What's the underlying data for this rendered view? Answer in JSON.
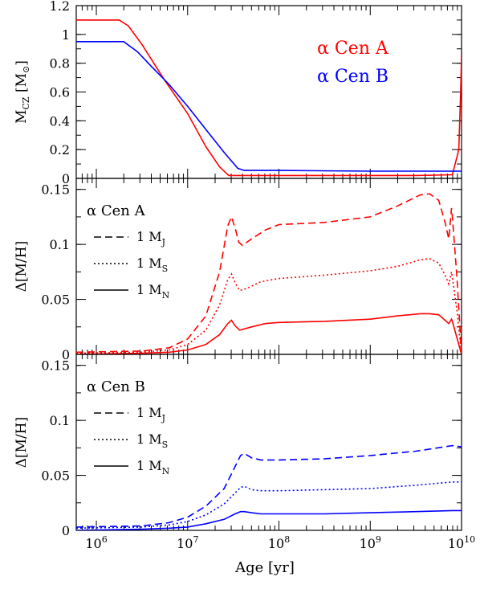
{
  "chart_data": [
    {
      "type": "line",
      "ylabel_main": "M",
      "ylabel_sub": "CZ",
      "ylabel_unit_open": " [M",
      "ylabel_unit_close": "]",
      "ylim": [
        0,
        1.2
      ],
      "yticks": [
        "0",
        "0.2",
        "0.4",
        "0.6",
        "0.8",
        "1",
        "1.2"
      ],
      "legend": [
        {
          "label": "α Cen A",
          "color": "#ff0000"
        },
        {
          "label": "α Cen B",
          "color": "#0000ff"
        }
      ],
      "series": [
        {
          "name": "α Cen A",
          "color": "#ff0000",
          "points": [
            [
              5.78,
              1.1
            ],
            [
              6.0,
              1.1
            ],
            [
              6.25,
              1.1
            ],
            [
              6.35,
              1.06
            ],
            [
              6.5,
              0.93
            ],
            [
              6.75,
              0.68
            ],
            [
              7.0,
              0.45
            ],
            [
              7.2,
              0.22
            ],
            [
              7.35,
              0.08
            ],
            [
              7.45,
              0.02
            ],
            [
              7.5,
              0.02
            ],
            [
              8.0,
              0.02
            ],
            [
              9.0,
              0.02
            ],
            [
              9.5,
              0.02
            ],
            [
              9.9,
              0.025
            ],
            [
              9.97,
              0.2
            ],
            [
              9.99,
              0.6
            ],
            [
              10.0,
              0.86
            ]
          ]
        },
        {
          "name": "α Cen B",
          "color": "#0000ff",
          "points": [
            [
              5.78,
              0.95
            ],
            [
              6.0,
              0.95
            ],
            [
              6.3,
              0.95
            ],
            [
              6.45,
              0.88
            ],
            [
              6.6,
              0.78
            ],
            [
              6.8,
              0.65
            ],
            [
              7.0,
              0.5
            ],
            [
              7.2,
              0.34
            ],
            [
              7.4,
              0.18
            ],
            [
              7.55,
              0.07
            ],
            [
              7.62,
              0.055
            ],
            [
              8.0,
              0.055
            ],
            [
              9.0,
              0.05
            ],
            [
              9.9,
              0.05
            ],
            [
              10.0,
              0.05
            ]
          ]
        }
      ]
    },
    {
      "type": "line",
      "ylabel": "Δ[M/H]",
      "ylim": [
        0,
        0.16
      ],
      "yticks": [
        "0",
        "0.05",
        "0.1",
        "0.15"
      ],
      "annotation": "α Cen A",
      "legend": [
        {
          "label": "1 M",
          "sub": "J",
          "dash": "dashed"
        },
        {
          "label": "1 M",
          "sub": "S",
          "dash": "dotted"
        },
        {
          "label": "1 M",
          "sub": "N",
          "dash": "solid"
        }
      ],
      "series": [
        {
          "name": "1 MJ",
          "color": "#ff0000",
          "dash": "dashed",
          "points": [
            [
              5.78,
              0.002
            ],
            [
              6.5,
              0.003
            ],
            [
              6.8,
              0.006
            ],
            [
              7.0,
              0.014
            ],
            [
              7.2,
              0.035
            ],
            [
              7.35,
              0.075
            ],
            [
              7.44,
              0.117
            ],
            [
              7.48,
              0.125
            ],
            [
              7.52,
              0.115
            ],
            [
              7.56,
              0.102
            ],
            [
              7.6,
              0.099
            ],
            [
              7.7,
              0.105
            ],
            [
              7.85,
              0.113
            ],
            [
              8.0,
              0.118
            ],
            [
              8.5,
              0.12
            ],
            [
              9.0,
              0.125
            ],
            [
              9.3,
              0.135
            ],
            [
              9.55,
              0.145
            ],
            [
              9.65,
              0.146
            ],
            [
              9.75,
              0.14
            ],
            [
              9.82,
              0.12
            ],
            [
              9.86,
              0.105
            ],
            [
              9.89,
              0.133
            ],
            [
              9.9,
              0.125
            ],
            [
              9.95,
              0.07
            ],
            [
              10.0,
              0.0
            ]
          ]
        },
        {
          "name": "1 MS",
          "color": "#ff0000",
          "dash": "dotted",
          "points": [
            [
              5.78,
              0.001
            ],
            [
              6.5,
              0.002
            ],
            [
              6.8,
              0.004
            ],
            [
              7.0,
              0.009
            ],
            [
              7.2,
              0.022
            ],
            [
              7.35,
              0.045
            ],
            [
              7.44,
              0.068
            ],
            [
              7.48,
              0.073
            ],
            [
              7.52,
              0.065
            ],
            [
              7.57,
              0.058
            ],
            [
              7.65,
              0.06
            ],
            [
              7.8,
              0.066
            ],
            [
              8.0,
              0.069
            ],
            [
              8.5,
              0.072
            ],
            [
              9.0,
              0.076
            ],
            [
              9.3,
              0.08
            ],
            [
              9.55,
              0.086
            ],
            [
              9.65,
              0.087
            ],
            [
              9.75,
              0.083
            ],
            [
              9.82,
              0.072
            ],
            [
              9.86,
              0.064
            ],
            [
              9.89,
              0.075
            ],
            [
              9.9,
              0.07
            ],
            [
              9.95,
              0.04
            ],
            [
              10.0,
              0.0
            ]
          ]
        },
        {
          "name": "1 MN",
          "color": "#ff0000",
          "dash": "solid",
          "points": [
            [
              5.78,
              0.0
            ],
            [
              6.5,
              0.001
            ],
            [
              6.8,
              0.002
            ],
            [
              7.0,
              0.004
            ],
            [
              7.2,
              0.009
            ],
            [
              7.35,
              0.018
            ],
            [
              7.44,
              0.028
            ],
            [
              7.48,
              0.031
            ],
            [
              7.52,
              0.026
            ],
            [
              7.57,
              0.022
            ],
            [
              7.7,
              0.025
            ],
            [
              7.85,
              0.028
            ],
            [
              8.0,
              0.029
            ],
            [
              8.5,
              0.03
            ],
            [
              9.0,
              0.032
            ],
            [
              9.3,
              0.035
            ],
            [
              9.55,
              0.037
            ],
            [
              9.65,
              0.037
            ],
            [
              9.75,
              0.036
            ],
            [
              9.82,
              0.031
            ],
            [
              9.86,
              0.028
            ],
            [
              9.89,
              0.032
            ],
            [
              9.9,
              0.03
            ],
            [
              9.95,
              0.015
            ],
            [
              10.0,
              0.0
            ]
          ]
        }
      ]
    },
    {
      "type": "line",
      "xlabel": "Age [yr]",
      "ylabel": "Δ[M/H]",
      "ylim": [
        0,
        0.16
      ],
      "yticks": [
        "0",
        "0.05",
        "0.1",
        "0.15"
      ],
      "annotation": "α Cen B",
      "xticks": [
        {
          "value": 6,
          "base": "10",
          "exp": "6"
        },
        {
          "value": 7,
          "base": "10",
          "exp": "7"
        },
        {
          "value": 8,
          "base": "10",
          "exp": "8"
        },
        {
          "value": 9,
          "base": "10",
          "exp": "9"
        },
        {
          "value": 10,
          "base": "10",
          "exp": "10"
        }
      ],
      "xlim_log": [
        5.78,
        10.0
      ],
      "legend": [
        {
          "label": "1 M",
          "sub": "J",
          "dash": "dashed"
        },
        {
          "label": "1 M",
          "sub": "S",
          "dash": "dotted"
        },
        {
          "label": "1 M",
          "sub": "N",
          "dash": "solid"
        }
      ],
      "series": [
        {
          "name": "1 MJ",
          "color": "#0000ff",
          "dash": "dashed",
          "points": [
            [
              5.78,
              0.003
            ],
            [
              6.5,
              0.004
            ],
            [
              6.8,
              0.007
            ],
            [
              7.0,
              0.012
            ],
            [
              7.2,
              0.022
            ],
            [
              7.4,
              0.038
            ],
            [
              7.52,
              0.058
            ],
            [
              7.58,
              0.068
            ],
            [
              7.62,
              0.07
            ],
            [
              7.7,
              0.066
            ],
            [
              7.8,
              0.064
            ],
            [
              8.0,
              0.064
            ],
            [
              8.5,
              0.065
            ],
            [
              9.0,
              0.068
            ],
            [
              9.5,
              0.072
            ],
            [
              9.9,
              0.077
            ],
            [
              10.0,
              0.076
            ]
          ]
        },
        {
          "name": "1 MS",
          "color": "#0000ff",
          "dash": "dotted",
          "points": [
            [
              5.78,
              0.002
            ],
            [
              6.5,
              0.003
            ],
            [
              6.8,
              0.005
            ],
            [
              7.0,
              0.008
            ],
            [
              7.2,
              0.014
            ],
            [
              7.4,
              0.024
            ],
            [
              7.52,
              0.034
            ],
            [
              7.58,
              0.039
            ],
            [
              7.62,
              0.04
            ],
            [
              7.7,
              0.037
            ],
            [
              7.8,
              0.036
            ],
            [
              8.0,
              0.036
            ],
            [
              8.5,
              0.037
            ],
            [
              9.0,
              0.038
            ],
            [
              9.5,
              0.041
            ],
            [
              9.9,
              0.044
            ],
            [
              10.0,
              0.044
            ]
          ]
        },
        {
          "name": "1 MN",
          "color": "#0000ff",
          "dash": "solid",
          "points": [
            [
              5.78,
              0.0
            ],
            [
              6.5,
              0.001
            ],
            [
              6.8,
              0.002
            ],
            [
              7.0,
              0.003
            ],
            [
              7.2,
              0.006
            ],
            [
              7.4,
              0.01
            ],
            [
              7.52,
              0.015
            ],
            [
              7.58,
              0.017
            ],
            [
              7.62,
              0.017
            ],
            [
              7.7,
              0.016
            ],
            [
              7.8,
              0.015
            ],
            [
              8.0,
              0.015
            ],
            [
              8.5,
              0.015
            ],
            [
              9.0,
              0.016
            ],
            [
              9.5,
              0.017
            ],
            [
              9.9,
              0.018
            ],
            [
              10.0,
              0.018
            ]
          ]
        }
      ]
    }
  ]
}
